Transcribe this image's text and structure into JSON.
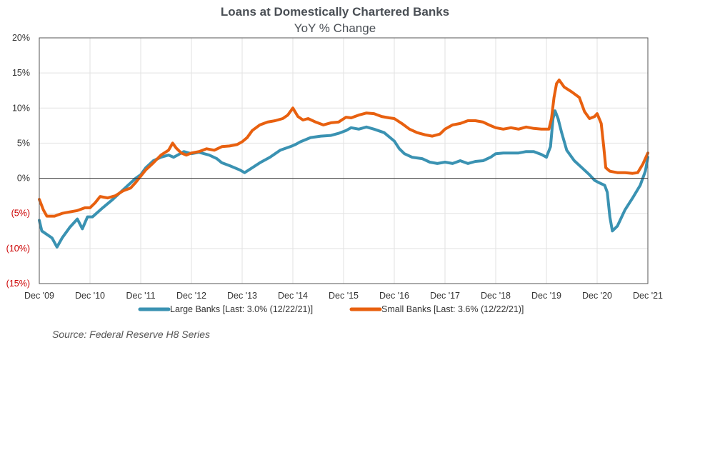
{
  "chart_data": {
    "type": "line",
    "title": "Loans at Domestically Chartered Banks",
    "subtitle": "YoY % Change",
    "xlabel": "",
    "ylabel": "",
    "xlim": [
      2009.95,
      2021.95
    ],
    "ylim": [
      -15,
      20
    ],
    "y_ticks": [
      {
        "value": 20,
        "label": "20%"
      },
      {
        "value": 15,
        "label": "15%"
      },
      {
        "value": 10,
        "label": "10%"
      },
      {
        "value": 5,
        "label": "5%"
      },
      {
        "value": 0,
        "label": "0%"
      },
      {
        "value": -5,
        "label": "(5%)"
      },
      {
        "value": -10,
        "label": "(10%)"
      },
      {
        "value": -15,
        "label": "(15%)"
      }
    ],
    "x_ticks": [
      {
        "value": 2009.95,
        "label": "Dec '09"
      },
      {
        "value": 2010.95,
        "label": "Dec '10"
      },
      {
        "value": 2011.95,
        "label": "Dec '11"
      },
      {
        "value": 2012.95,
        "label": "Dec '12"
      },
      {
        "value": 2013.95,
        "label": "Dec '13"
      },
      {
        "value": 2014.95,
        "label": "Dec '14"
      },
      {
        "value": 2015.95,
        "label": "Dec '15"
      },
      {
        "value": 2016.95,
        "label": "Dec '16"
      },
      {
        "value": 2017.95,
        "label": "Dec '17"
      },
      {
        "value": 2018.95,
        "label": "Dec '18"
      },
      {
        "value": 2019.95,
        "label": "Dec '19"
      },
      {
        "value": 2020.95,
        "label": "Dec '20"
      },
      {
        "value": 2021.95,
        "label": "Dec '21"
      }
    ],
    "grid": true,
    "legend_position": "bottom",
    "series": [
      {
        "name": "Large Banks [Last: 3.0% (12/22/21)]",
        "color": "#3a92b2",
        "points": [
          [
            2009.95,
            -6.0
          ],
          [
            2010.0,
            -7.5
          ],
          [
            2010.1,
            -8.0
          ],
          [
            2010.2,
            -8.5
          ],
          [
            2010.3,
            -9.8
          ],
          [
            2010.4,
            -8.5
          ],
          [
            2010.55,
            -7.0
          ],
          [
            2010.7,
            -5.8
          ],
          [
            2010.8,
            -7.2
          ],
          [
            2010.9,
            -5.5
          ],
          [
            2011.0,
            -5.5
          ],
          [
            2011.2,
            -4.2
          ],
          [
            2011.4,
            -3.0
          ],
          [
            2011.55,
            -2.0
          ],
          [
            2011.7,
            -1.0
          ],
          [
            2011.85,
            0.0
          ],
          [
            2011.95,
            0.5
          ],
          [
            2012.05,
            1.5
          ],
          [
            2012.2,
            2.5
          ],
          [
            2012.35,
            3.0
          ],
          [
            2012.5,
            3.3
          ],
          [
            2012.6,
            3.0
          ],
          [
            2012.7,
            3.4
          ],
          [
            2012.8,
            3.8
          ],
          [
            2012.95,
            3.5
          ],
          [
            2013.1,
            3.7
          ],
          [
            2013.2,
            3.5
          ],
          [
            2013.3,
            3.3
          ],
          [
            2013.45,
            2.8
          ],
          [
            2013.55,
            2.2
          ],
          [
            2013.7,
            1.8
          ],
          [
            2013.9,
            1.2
          ],
          [
            2014.0,
            0.8
          ],
          [
            2014.15,
            1.5
          ],
          [
            2014.3,
            2.2
          ],
          [
            2014.5,
            3.0
          ],
          [
            2014.7,
            4.0
          ],
          [
            2014.9,
            4.5
          ],
          [
            2015.0,
            4.8
          ],
          [
            2015.1,
            5.2
          ],
          [
            2015.3,
            5.8
          ],
          [
            2015.5,
            6.0
          ],
          [
            2015.7,
            6.1
          ],
          [
            2015.85,
            6.4
          ],
          [
            2016.0,
            6.8
          ],
          [
            2016.1,
            7.2
          ],
          [
            2016.25,
            7.0
          ],
          [
            2016.4,
            7.3
          ],
          [
            2016.55,
            7.0
          ],
          [
            2016.75,
            6.5
          ],
          [
            2016.95,
            5.3
          ],
          [
            2017.05,
            4.2
          ],
          [
            2017.15,
            3.5
          ],
          [
            2017.3,
            3.0
          ],
          [
            2017.5,
            2.8
          ],
          [
            2017.65,
            2.3
          ],
          [
            2017.8,
            2.1
          ],
          [
            2017.95,
            2.3
          ],
          [
            2018.1,
            2.1
          ],
          [
            2018.25,
            2.5
          ],
          [
            2018.4,
            2.1
          ],
          [
            2018.55,
            2.4
          ],
          [
            2018.7,
            2.5
          ],
          [
            2018.85,
            3.0
          ],
          [
            2018.95,
            3.5
          ],
          [
            2019.1,
            3.6
          ],
          [
            2019.25,
            3.6
          ],
          [
            2019.4,
            3.6
          ],
          [
            2019.55,
            3.8
          ],
          [
            2019.7,
            3.8
          ],
          [
            2019.85,
            3.4
          ],
          [
            2019.95,
            3.0
          ],
          [
            2020.03,
            4.5
          ],
          [
            2020.08,
            8.5
          ],
          [
            2020.12,
            9.6
          ],
          [
            2020.18,
            8.5
          ],
          [
            2020.25,
            6.5
          ],
          [
            2020.35,
            4.0
          ],
          [
            2020.5,
            2.5
          ],
          [
            2020.65,
            1.5
          ],
          [
            2020.8,
            0.5
          ],
          [
            2020.9,
            -0.3
          ],
          [
            2020.98,
            -0.6
          ],
          [
            2021.1,
            -1.0
          ],
          [
            2021.15,
            -2.0
          ],
          [
            2021.2,
            -5.5
          ],
          [
            2021.25,
            -7.5
          ],
          [
            2021.35,
            -6.8
          ],
          [
            2021.5,
            -4.5
          ],
          [
            2021.65,
            -2.8
          ],
          [
            2021.8,
            -1.0
          ],
          [
            2021.9,
            1.0
          ],
          [
            2021.95,
            3.0
          ]
        ]
      },
      {
        "name": "Small Banks [Last: 3.6% (12/22/21)]",
        "color": "#e8600f",
        "points": [
          [
            2009.95,
            -3.0
          ],
          [
            2010.03,
            -4.5
          ],
          [
            2010.1,
            -5.4
          ],
          [
            2010.25,
            -5.4
          ],
          [
            2010.4,
            -5.0
          ],
          [
            2010.55,
            -4.8
          ],
          [
            2010.7,
            -4.6
          ],
          [
            2010.85,
            -4.2
          ],
          [
            2010.95,
            -4.2
          ],
          [
            2011.05,
            -3.5
          ],
          [
            2011.15,
            -2.6
          ],
          [
            2011.3,
            -2.8
          ],
          [
            2011.45,
            -2.5
          ],
          [
            2011.6,
            -1.8
          ],
          [
            2011.75,
            -1.4
          ],
          [
            2011.85,
            -0.6
          ],
          [
            2011.95,
            0.3
          ],
          [
            2012.05,
            1.2
          ],
          [
            2012.2,
            2.2
          ],
          [
            2012.35,
            3.3
          ],
          [
            2012.5,
            4.0
          ],
          [
            2012.58,
            5.0
          ],
          [
            2012.65,
            4.3
          ],
          [
            2012.75,
            3.6
          ],
          [
            2012.85,
            3.3
          ],
          [
            2012.95,
            3.6
          ],
          [
            2013.1,
            3.8
          ],
          [
            2013.25,
            4.2
          ],
          [
            2013.4,
            4.0
          ],
          [
            2013.55,
            4.5
          ],
          [
            2013.7,
            4.6
          ],
          [
            2013.85,
            4.8
          ],
          [
            2013.95,
            5.2
          ],
          [
            2014.05,
            5.8
          ],
          [
            2014.15,
            6.8
          ],
          [
            2014.3,
            7.6
          ],
          [
            2014.45,
            8.0
          ],
          [
            2014.6,
            8.2
          ],
          [
            2014.75,
            8.5
          ],
          [
            2014.85,
            9.0
          ],
          [
            2014.95,
            10.0
          ],
          [
            2015.05,
            8.8
          ],
          [
            2015.15,
            8.3
          ],
          [
            2015.25,
            8.5
          ],
          [
            2015.4,
            8.0
          ],
          [
            2015.55,
            7.6
          ],
          [
            2015.7,
            7.9
          ],
          [
            2015.85,
            8.0
          ],
          [
            2016.0,
            8.7
          ],
          [
            2016.1,
            8.6
          ],
          [
            2016.25,
            9.0
          ],
          [
            2016.4,
            9.3
          ],
          [
            2016.55,
            9.2
          ],
          [
            2016.7,
            8.8
          ],
          [
            2016.85,
            8.6
          ],
          [
            2016.95,
            8.5
          ],
          [
            2017.1,
            7.8
          ],
          [
            2017.25,
            7.0
          ],
          [
            2017.4,
            6.5
          ],
          [
            2017.55,
            6.2
          ],
          [
            2017.7,
            6.0
          ],
          [
            2017.85,
            6.3
          ],
          [
            2017.95,
            7.0
          ],
          [
            2018.1,
            7.6
          ],
          [
            2018.25,
            7.8
          ],
          [
            2018.4,
            8.2
          ],
          [
            2018.55,
            8.2
          ],
          [
            2018.7,
            8.0
          ],
          [
            2018.85,
            7.5
          ],
          [
            2018.95,
            7.2
          ],
          [
            2019.1,
            7.0
          ],
          [
            2019.25,
            7.2
          ],
          [
            2019.4,
            7.0
          ],
          [
            2019.55,
            7.3
          ],
          [
            2019.7,
            7.1
          ],
          [
            2019.85,
            7.0
          ],
          [
            2019.95,
            7.0
          ],
          [
            2020.0,
            7.0
          ],
          [
            2020.05,
            8.5
          ],
          [
            2020.1,
            11.5
          ],
          [
            2020.15,
            13.5
          ],
          [
            2020.2,
            14.0
          ],
          [
            2020.3,
            13.0
          ],
          [
            2020.45,
            12.3
          ],
          [
            2020.6,
            11.5
          ],
          [
            2020.7,
            9.5
          ],
          [
            2020.8,
            8.5
          ],
          [
            2020.9,
            8.8
          ],
          [
            2020.95,
            9.2
          ],
          [
            2021.03,
            7.8
          ],
          [
            2021.08,
            4.5
          ],
          [
            2021.12,
            1.5
          ],
          [
            2021.2,
            1.0
          ],
          [
            2021.35,
            0.8
          ],
          [
            2021.5,
            0.8
          ],
          [
            2021.65,
            0.7
          ],
          [
            2021.75,
            0.8
          ],
          [
            2021.85,
            2.0
          ],
          [
            2021.95,
            3.6
          ]
        ]
      }
    ]
  },
  "footer": {
    "source": "Source:  Federal Reserve H8 Series"
  }
}
